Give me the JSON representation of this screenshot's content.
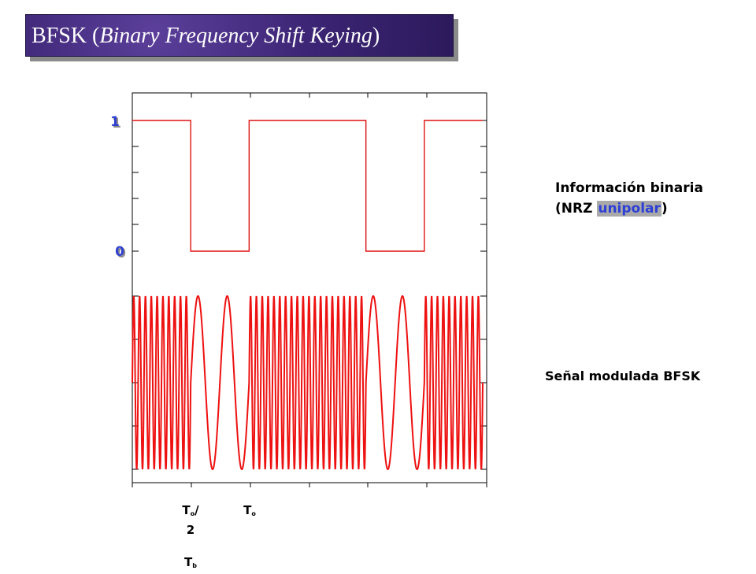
{
  "title": {
    "prefix": "BFSK (",
    "italic": "Binary Frequency Shift Keying",
    "suffix": ")"
  },
  "y_ticks": {
    "one": "1",
    "zero": "0"
  },
  "labels": {
    "info_line1": "Información binaria",
    "info_line2_prefix": "(NRZ ",
    "info_line2_highlight": "unipolar",
    "info_line2_suffix": ")",
    "modulated": "Señal modulada BFSK"
  },
  "x_labels": {
    "to_half_base": "T",
    "to_half_sub": "o",
    "to_half_slash": "/",
    "to_half_denominator": "2",
    "to_base": "T",
    "to_sub": "o",
    "tb_base": "T",
    "tb_sub": "b"
  },
  "colors": {
    "signal": "#ee1111",
    "title_bg": "#3b2473",
    "highlight": "#2d3fd6"
  },
  "chart_data": {
    "type": "line",
    "bits": [
      1,
      0,
      1,
      1,
      0,
      1
    ],
    "baseband_levels": [
      0,
      1
    ],
    "mark_cycles_per_bit": 10,
    "space_cycles_per_bit": 2
  }
}
